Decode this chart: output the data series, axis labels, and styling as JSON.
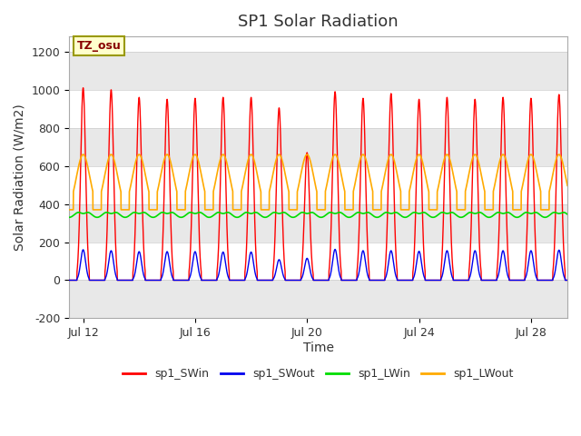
{
  "title": "SP1 Solar Radiation",
  "xlabel": "Time",
  "ylabel": "Solar Radiation (W/m2)",
  "ylim": [
    -200,
    1280
  ],
  "yticks": [
    -200,
    0,
    200,
    400,
    600,
    800,
    1000,
    1200
  ],
  "start_day": 11.5,
  "end_day": 29.3,
  "xtick_days": [
    12,
    16,
    20,
    24,
    28
  ],
  "xtick_labels": [
    "Jul 12",
    "Jul 16",
    "Jul 20",
    "Jul 24",
    "Jul 28"
  ],
  "colors": {
    "SWin": "#ff0000",
    "SWout": "#0000ee",
    "LWin": "#00dd00",
    "LWout": "#ffaa00"
  },
  "legend_labels": [
    "sp1_SWin",
    "sp1_SWout",
    "sp1_LWin",
    "sp1_LWout"
  ],
  "annotation_text": "TZ_osu",
  "annotation_color": "#880000",
  "annotation_bg": "#ffffcc",
  "annotation_border": "#999900",
  "bg_color": "#ffffff",
  "plot_bg": "#ffffff",
  "band_color": "#e8e8e8",
  "figsize": [
    6.4,
    4.8
  ],
  "dpi": 100,
  "n_days": 18,
  "SWin_peaks": [
    1010,
    1000,
    960,
    950,
    955,
    960,
    960,
    905,
    670,
    990,
    955,
    980,
    950,
    960,
    950,
    960,
    955,
    975
  ],
  "SWout_peaks": [
    160,
    155,
    150,
    150,
    150,
    148,
    148,
    108,
    115,
    162,
    155,
    155,
    152,
    155,
    155,
    155,
    155,
    158
  ],
  "LWin_base": 330,
  "LWin_amplitude": 50,
  "LWin_dip": 30,
  "LWout_base": 380,
  "LWout_peak": 660,
  "LWout_min": 370,
  "points_per_day": 200
}
